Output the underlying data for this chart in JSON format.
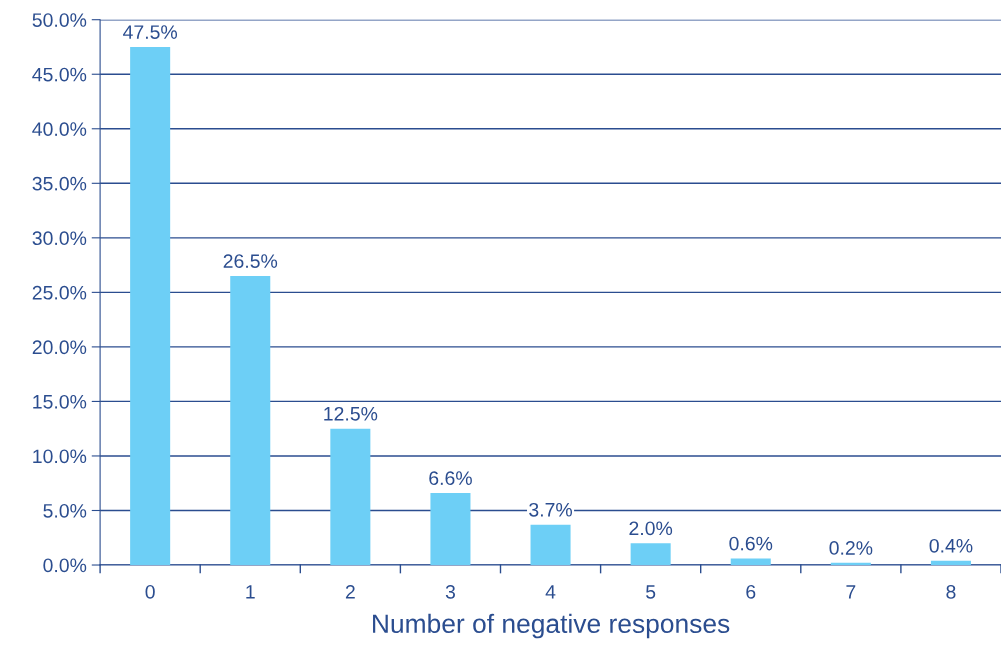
{
  "chart_data": {
    "type": "bar",
    "xlabel": "Number of negative responses",
    "categories": [
      "0",
      "1",
      "2",
      "3",
      "4",
      "5",
      "6",
      "7",
      "8"
    ],
    "values": [
      47.5,
      26.5,
      12.5,
      6.6,
      3.7,
      2.0,
      0.6,
      0.2,
      0.4
    ],
    "value_labels": [
      "47.5%",
      "26.5%",
      "12.5%",
      "6.6%",
      "3.7%",
      "2.0%",
      "0.6%",
      "0.2%",
      "0.4%"
    ],
    "color": "#6dcff6",
    "ylim": [
      0,
      50
    ],
    "yticks": [
      {
        "value": 0,
        "label": "0.0%"
      },
      {
        "value": 5,
        "label": "5.0%"
      },
      {
        "value": 10,
        "label": "10.0%"
      },
      {
        "value": 15,
        "label": "15.0%"
      },
      {
        "value": 20,
        "label": "20.0%"
      },
      {
        "value": 25,
        "label": "25.0%"
      },
      {
        "value": 30,
        "label": "30.0%"
      },
      {
        "value": 35,
        "label": "35.0%"
      },
      {
        "value": 40,
        "label": "40.0%"
      },
      {
        "value": 45,
        "label": "45.0%"
      },
      {
        "value": 50,
        "label": "50.0%"
      }
    ],
    "grid": "y",
    "legend": false
  }
}
